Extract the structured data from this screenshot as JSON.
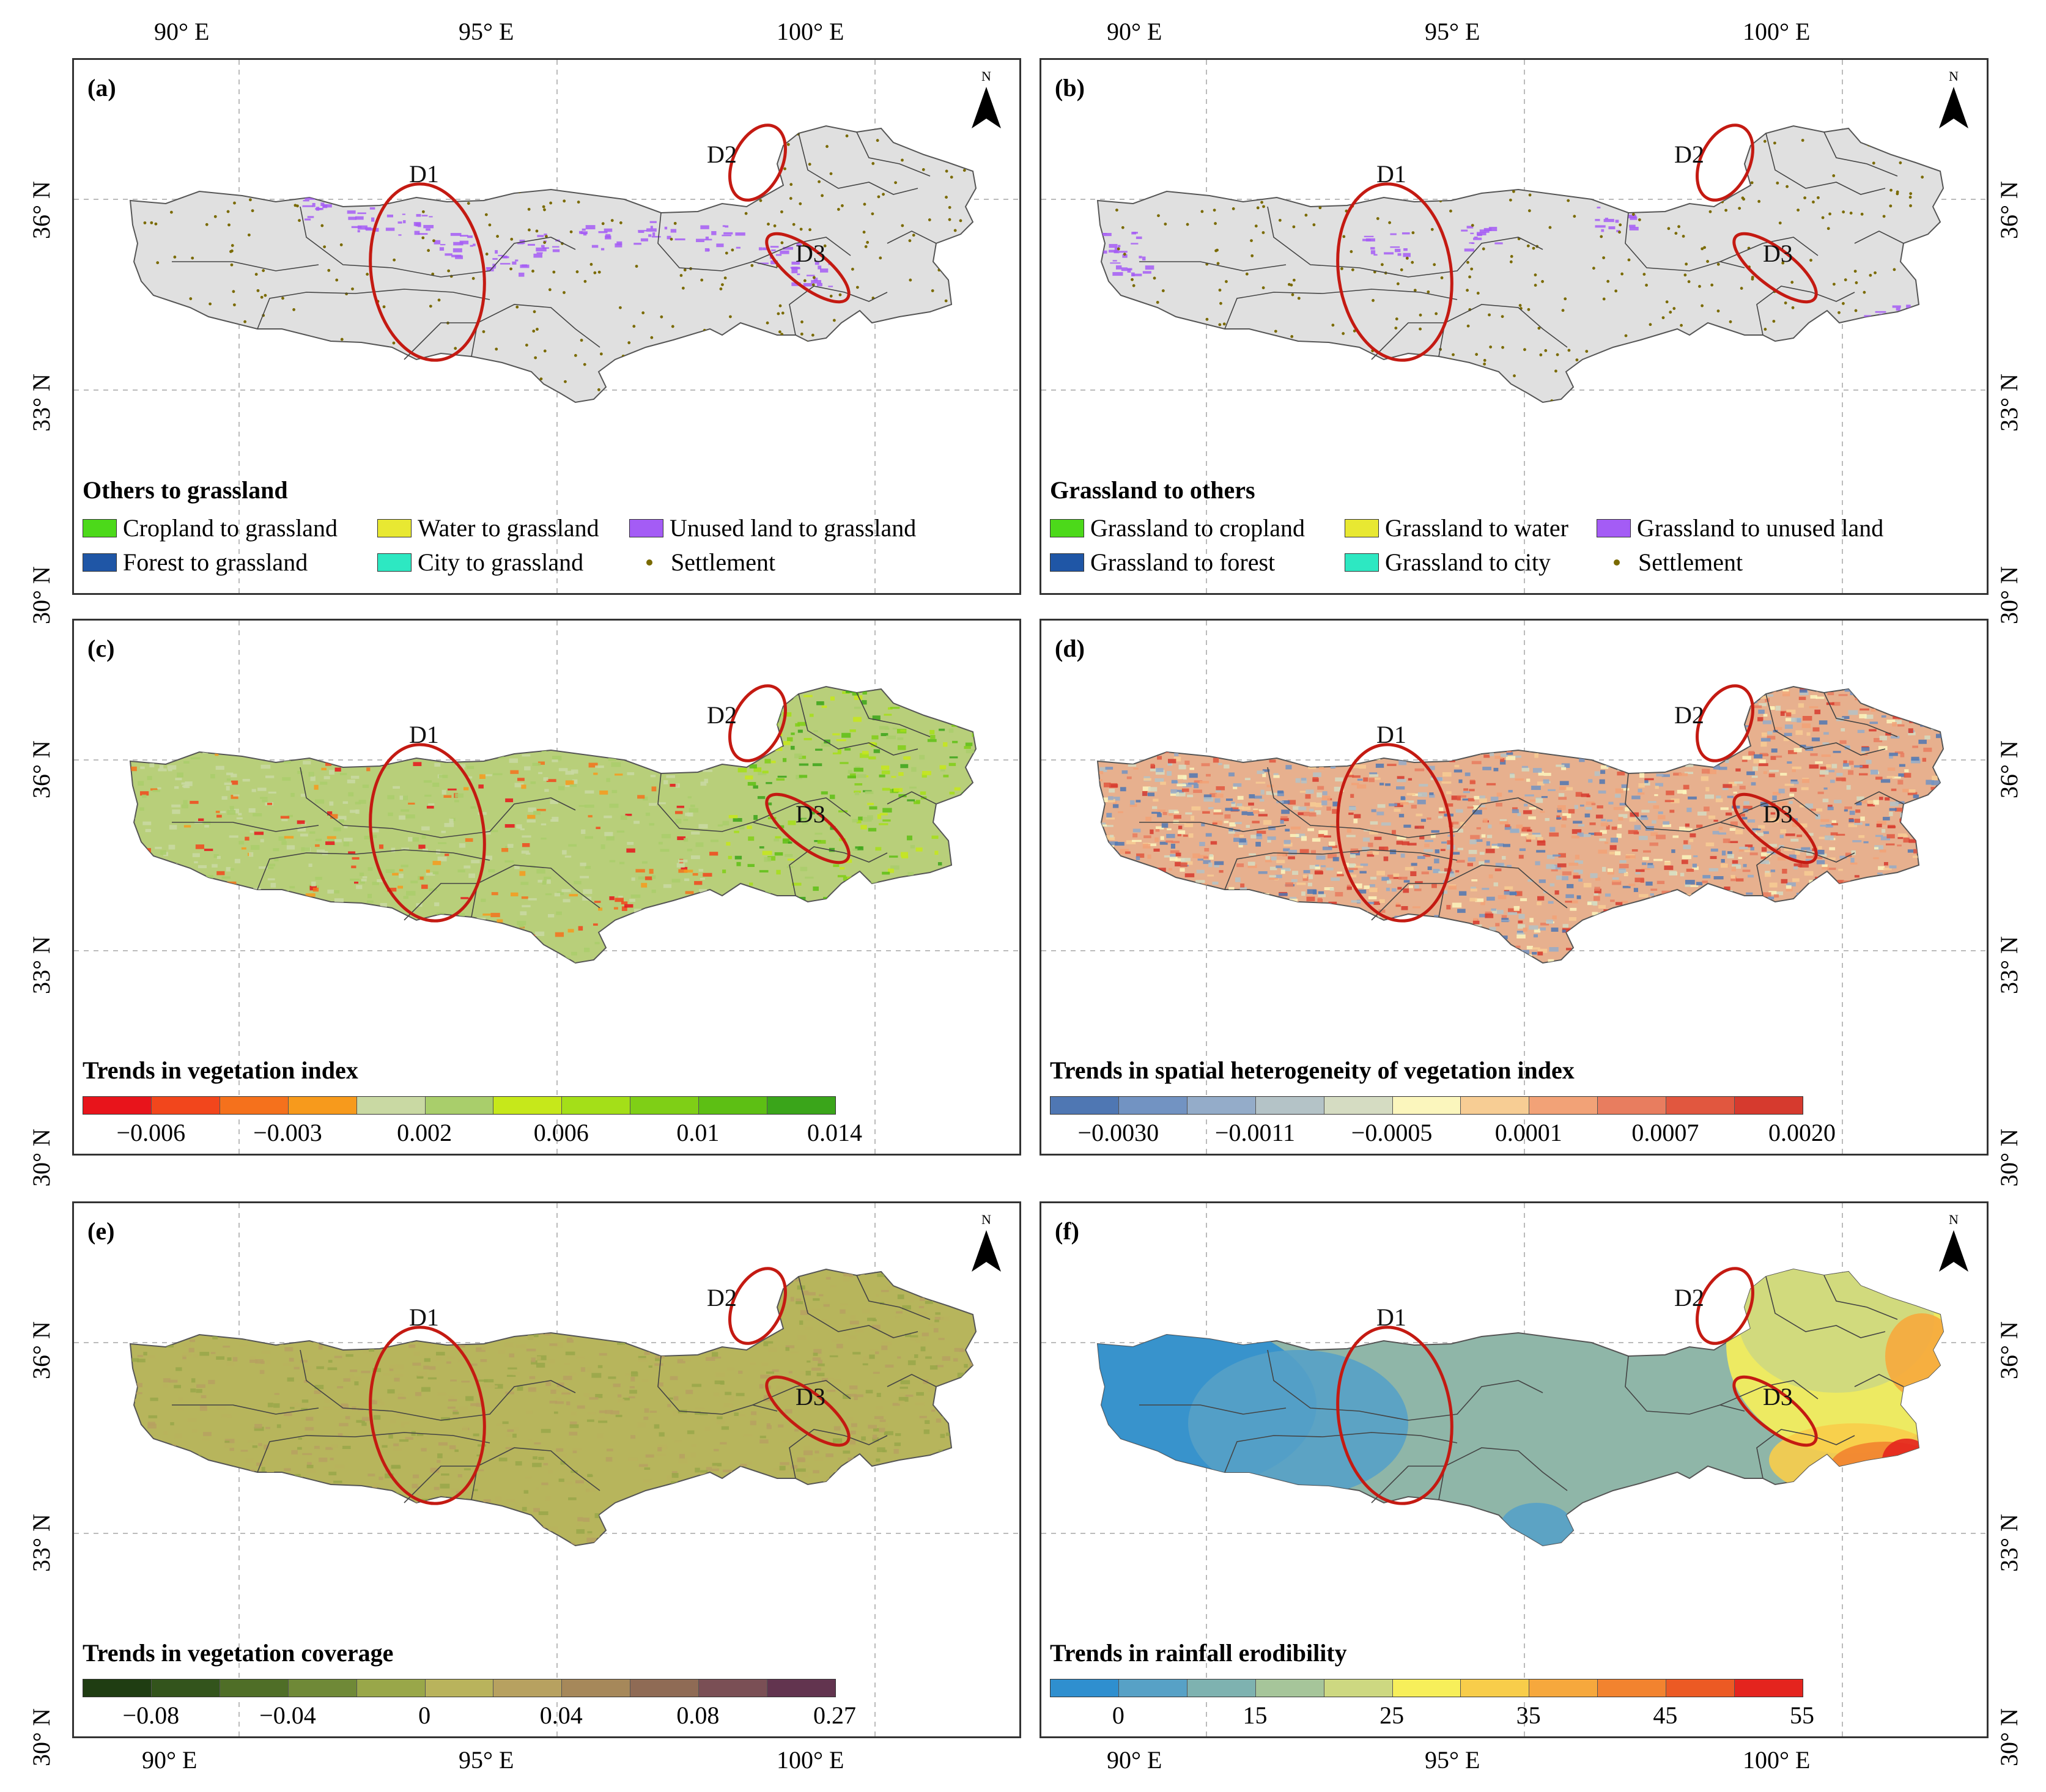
{
  "axes": {
    "lon_labels": [
      "90° E",
      "95° E",
      "100° E"
    ],
    "lat_labels": [
      "36° N",
      "33° N",
      "30° N"
    ]
  },
  "regions": [
    "D1",
    "D2",
    "D3"
  ],
  "north_symbol": "N",
  "panels": [
    {
      "id": "a",
      "label": "(a)",
      "map_fill": "#e0e0e0",
      "legend_title": "Others to grassland",
      "legend_rows": [
        [
          {
            "label": "Cropland to grassland",
            "color": "#4cd91a"
          },
          {
            "label": "Water to grassland",
            "color": "#e8e832"
          },
          {
            "label": "Unused land to grassland",
            "color": "#a45cf5"
          }
        ],
        [
          {
            "label": "Forest  to grassland",
            "color": "#1f56a6"
          },
          {
            "label": "City to grassland",
            "color": "#2de8c2"
          },
          {
            "label": "Settlement",
            "color": "#7a6a00",
            "point": true
          }
        ]
      ]
    },
    {
      "id": "b",
      "label": "(b)",
      "map_fill": "#e0e0e0",
      "legend_title": "Grassland to  others",
      "legend_rows": [
        [
          {
            "label": "Grassland to cropland",
            "color": "#4cd91a"
          },
          {
            "label": "Grassland to water",
            "color": "#e8e832"
          },
          {
            "label": "Grassland to unused land",
            "color": "#a45cf5"
          }
        ],
        [
          {
            "label": "Grassland to forest",
            "color": "#1f56a6"
          },
          {
            "label": "Grassland to city",
            "color": "#2de8c2"
          },
          {
            "label": "Settlement",
            "color": "#7a6a00",
            "point": true
          }
        ]
      ]
    },
    {
      "id": "c",
      "label": "(c)",
      "map_fill": "#b8cf7a",
      "legend_title": "Trends in vegetation index",
      "ramp": [
        "#e8141b",
        "#f2461c",
        "#f5711c",
        "#f79a1c",
        "#c9d9a3",
        "#a9ce6b",
        "#c6e81a",
        "#a4df18",
        "#7fcf16",
        "#5dbf14",
        "#3aa51a"
      ],
      "tick_labels": [
        "−0.006",
        "−0.003",
        "0.002",
        "0.006",
        "0.01",
        "0.014"
      ]
    },
    {
      "id": "d",
      "label": "(d)",
      "map_fill": "#e7b08e",
      "legend_title": "Trends in spatial heterogeneity of vegetation index",
      "ramp": [
        "#4f77b3",
        "#7293c2",
        "#94acc9",
        "#b4c3c7",
        "#d5dcc2",
        "#fbf6bd",
        "#f7cd94",
        "#f2a277",
        "#e87d5f",
        "#e1573f",
        "#d63a2e"
      ],
      "tick_labels": [
        "−0.0030",
        "−0.0011",
        "−0.0005",
        "0.0001",
        "0.0007",
        "0.0020"
      ]
    },
    {
      "id": "e",
      "label": "(e)",
      "map_fill": "#b7b55c",
      "legend_title": "Trends in vegetation coverage",
      "ramp": [
        "#1f3d12",
        "#33541c",
        "#4f6e27",
        "#6f8937",
        "#99a749",
        "#b9b35c",
        "#b7a160",
        "#a6885a",
        "#8f6b55",
        "#7a4f55",
        "#62344f"
      ],
      "tick_labels": [
        "−0.08",
        "−0.04",
        "0",
        "0.04",
        "0.08",
        "0.27"
      ]
    },
    {
      "id": "f",
      "label": "(f)",
      "map_fill": "#8fb6a8",
      "legend_title": "Trends in rainfall erodibility",
      "ramp": [
        "#2f8fcf",
        "#57a1c6",
        "#7eb2b0",
        "#a6c59a",
        "#cdd881",
        "#f7ef5a",
        "#f8cd4a",
        "#f6a83d",
        "#f2832f",
        "#ec5a24",
        "#e4241e"
      ],
      "tick_labels": [
        "0",
        "15",
        "25",
        "35",
        "45",
        "55"
      ]
    }
  ]
}
